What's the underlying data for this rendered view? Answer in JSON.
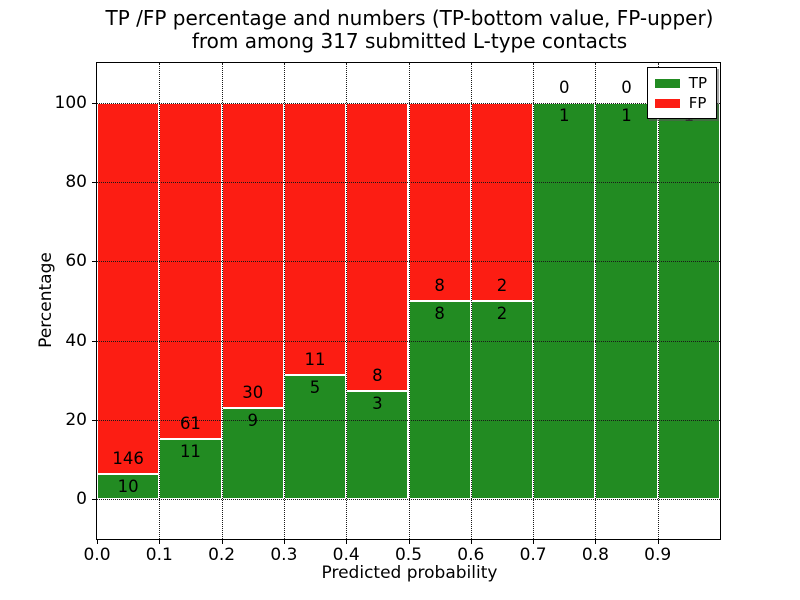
{
  "figure": {
    "title_line1": "TP /FP percentage and numbers (TP-bottom value, FP-upper)",
    "title_line2": "from among 317 submitted L-type contacts"
  },
  "chart_data": {
    "type": "bar",
    "stacked": true,
    "title": "TP /FP percentage and numbers (TP-bottom value, FP-upper)\nfrom among 317 submitted L-type contacts",
    "xlabel": "Predicted probability",
    "ylabel": "Percentage",
    "xlim": [
      0.0,
      1.0
    ],
    "ylim": [
      -10,
      110
    ],
    "xticks": [
      "0.0",
      "0.1",
      "0.2",
      "0.3",
      "0.4",
      "0.5",
      "0.6",
      "0.7",
      "0.8",
      "0.9"
    ],
    "yticks": [
      0,
      20,
      40,
      60,
      80,
      100
    ],
    "grid": "dotted both axes",
    "legend_position": "upper right",
    "legend": [
      {
        "label": "TP",
        "color": "#228b22"
      },
      {
        "label": "FP",
        "color": "#fc1d13"
      }
    ],
    "bins": [
      {
        "range": "0.0-0.1",
        "tp": 10,
        "fp": 146,
        "tp_pct": 6.41
      },
      {
        "range": "0.1-0.2",
        "tp": 11,
        "fp": 61,
        "tp_pct": 15.28
      },
      {
        "range": "0.2-0.3",
        "tp": 9,
        "fp": 30,
        "tp_pct": 23.08
      },
      {
        "range": "0.3-0.4",
        "tp": 5,
        "fp": 11,
        "tp_pct": 31.25
      },
      {
        "range": "0.4-0.5",
        "tp": 3,
        "fp": 8,
        "tp_pct": 27.27
      },
      {
        "range": "0.5-0.6",
        "tp": 8,
        "fp": 8,
        "tp_pct": 50.0
      },
      {
        "range": "0.6-0.7",
        "tp": 2,
        "fp": 2,
        "tp_pct": 50.0
      },
      {
        "range": "0.7-0.8",
        "tp": 1,
        "fp": 0,
        "tp_pct": 100.0
      },
      {
        "range": "0.8-0.9",
        "tp": 1,
        "fp": 0,
        "tp_pct": 100.0
      },
      {
        "range": "0.9-1.0",
        "tp": 1,
        "fp": 0,
        "tp_pct": 100.0
      }
    ]
  }
}
